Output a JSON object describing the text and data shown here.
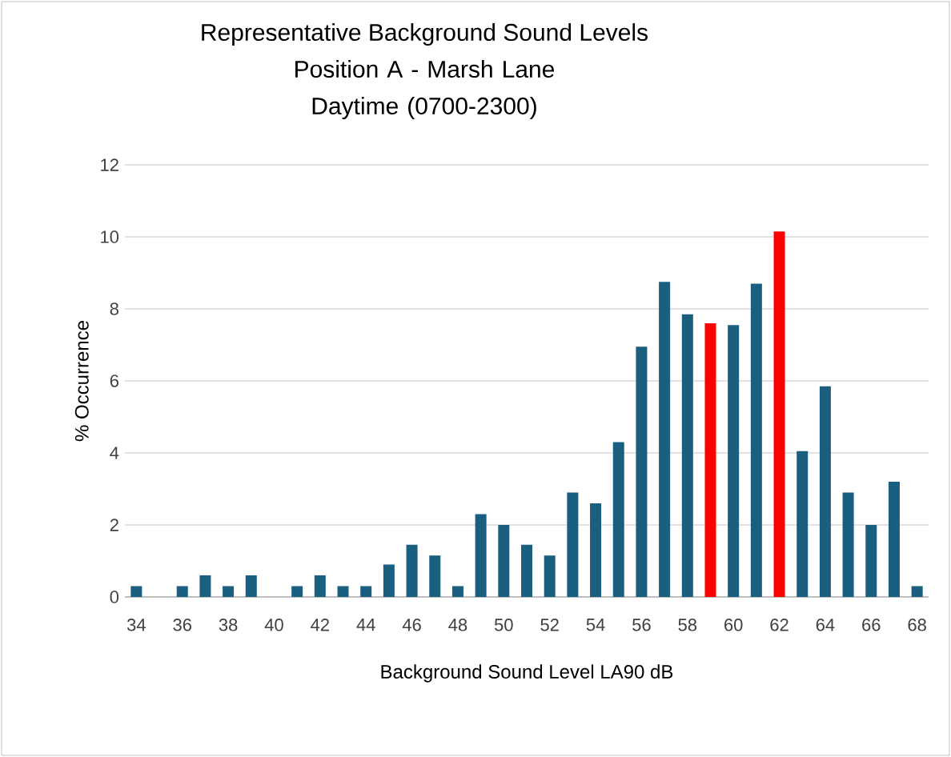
{
  "chart_data": {
    "type": "bar",
    "title": "Representative  Background Sound Levels",
    "subtitle": "Position A - Marsh Lane Daytime (0700-2300)",
    "xlabel": "Background Sound Level LA90 dB",
    "ylabel": "% Occurrence",
    "categories": [
      "34",
      null,
      "36",
      null,
      "38",
      null,
      "40",
      null,
      "42",
      null,
      "44",
      null,
      "46",
      null,
      "48",
      null,
      "50",
      null,
      "52",
      null,
      "54",
      null,
      "56",
      null,
      "58",
      null,
      "60",
      null,
      "62",
      null,
      "64",
      null,
      "66",
      null,
      "68"
    ],
    "values": [
      0.3,
      0,
      0.3,
      0.6,
      0.3,
      0.6,
      0,
      0.3,
      0.6,
      0.3,
      0.3,
      0.9,
      1.45,
      1.15,
      0.3,
      2.3,
      2.0,
      1.45,
      1.15,
      2.9,
      2.6,
      4.3,
      6.95,
      8.75,
      7.85,
      7.6,
      7.55,
      8.7,
      10.15,
      4.05,
      5.85,
      2.9,
      2.0,
      3.2,
      0.3
    ],
    "colors": [
      "#1a5e80",
      "#1a5e80",
      "#1a5e80",
      "#1a5e80",
      "#1a5e80",
      "#1a5e80",
      "#1a5e80",
      "#1a5e80",
      "#1a5e80",
      "#1a5e80",
      "#1a5e80",
      "#1a5e80",
      "#1a5e80",
      "#1a5e80",
      "#1a5e80",
      "#1a5e80",
      "#1a5e80",
      "#1a5e80",
      "#1a5e80",
      "#1a5e80",
      "#1a5e80",
      "#1a5e80",
      "#1a5e80",
      "#1a5e80",
      "#1a5e80",
      "#ff0000",
      "#1a5e80",
      "#1a5e80",
      "#ff0000",
      "#1a5e80",
      "#1a5e80",
      "#1a5e80",
      "#1a5e80",
      "#1a5e80",
      "#1a5e80"
    ],
    "ylim": [
      0,
      12
    ],
    "yticks": [
      0,
      2,
      4,
      6,
      8,
      10,
      12
    ],
    "grid": "y"
  }
}
